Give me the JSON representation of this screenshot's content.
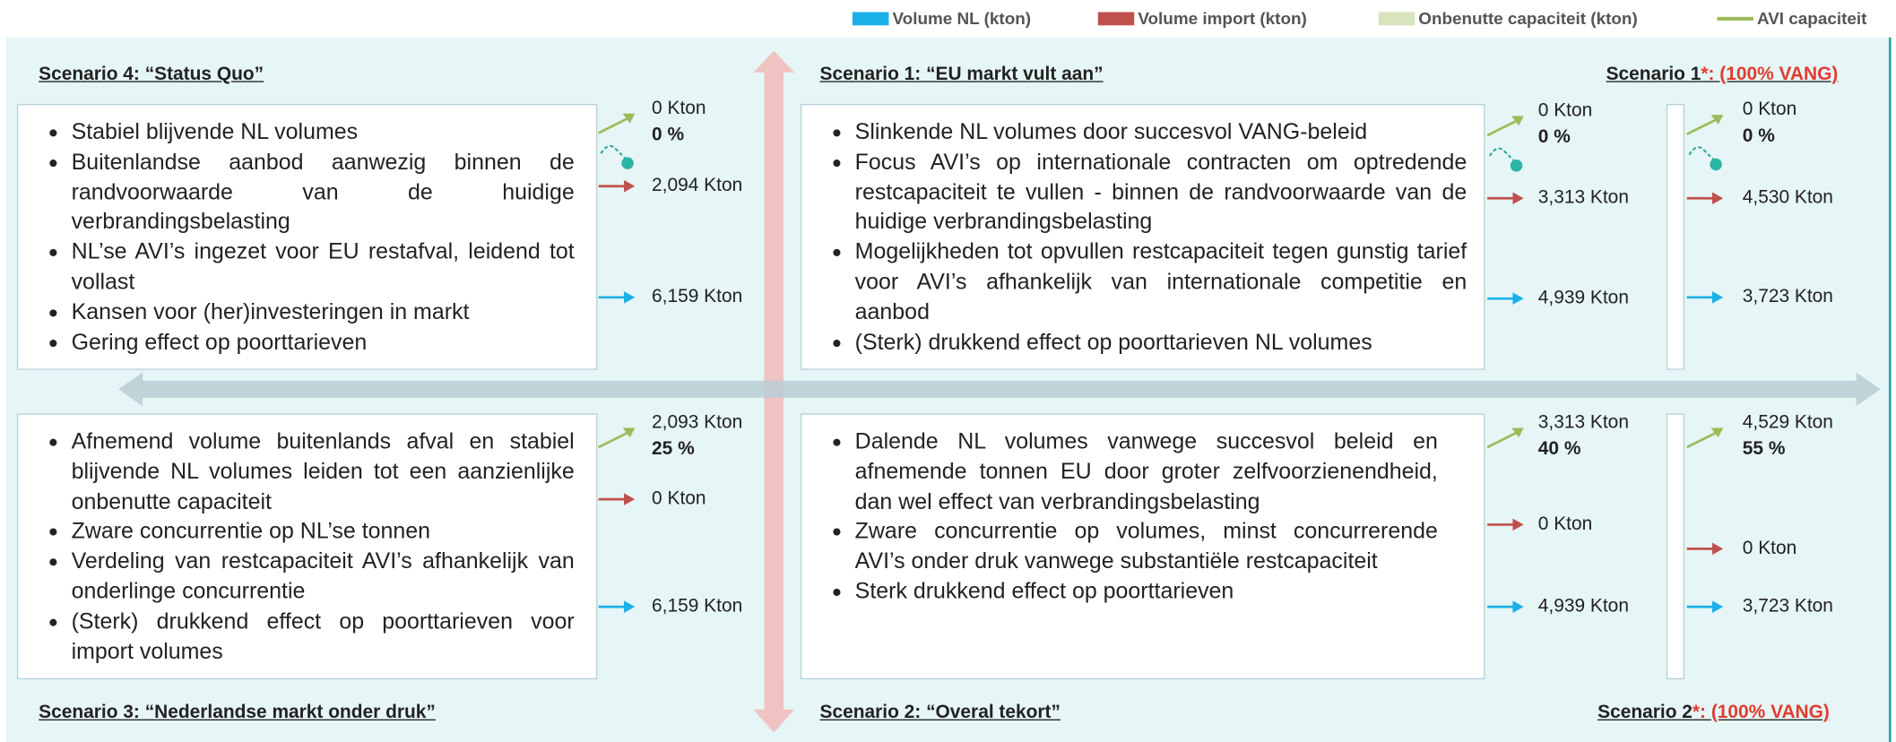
{
  "legend": [
    "Volume NL (kton)",
    "Volume import (kton)",
    "Onbenutte capaciteit (kton)",
    "AVI capaciteit"
  ],
  "quadrants": [
    {
      "title": "Scenario 4: “Status Quo”",
      "bullets": [
        "Stabiel blijvende NL volumes",
        "Buitenlandse aanbod aanwezig binnen de randvoorwaarde van de huidige verbrandingsbelasting",
        "NL’se AVI’s ingezet voor EU restafval, leidend tot vollast",
        "Kansen voor (her)investeringen in markt",
        "Gering effect op poorttarieven"
      ],
      "metrics": {
        "capacity": "0 Kton",
        "percent": "0 %",
        "import": "2,094 Kton",
        "nl": "6,159 Kton"
      }
    },
    {
      "title": "Scenario 1: “EU markt vult aan”",
      "bullets": [
        "Slinkende NL volumes door succesvol VANG-beleid",
        "Focus AVI’s op internationale contracten om optredende restcapaciteit te vullen - binnen de randvoorwaarde van de huidige verbrandingsbelasting",
        "Mogelijkheden tot opvullen restcapaciteit tegen gunstig tarief voor AVI’s afhankelijk van internationale competitie en aanbod",
        "(Sterk) drukkend effect op poorttarieven NL volumes"
      ],
      "metrics": {
        "capacity": "0 Kton",
        "percent": "0 %",
        "import": "3,313 Kton",
        "nl": "4,939 Kton"
      }
    },
    {
      "title": "Scenario 1",
      "title_suffix": "*: (100% VANG)",
      "metrics": {
        "capacity": "0 Kton",
        "percent": "0 %",
        "import": "4,530 Kton",
        "nl": "3,723 Kton"
      }
    },
    {
      "title": "Scenario 3: “Nederlandse markt onder druk”",
      "bullets": [
        "Afnemend volume buitenlands afval en stabiel blijvende NL volumes leiden tot een aanzienlijke  onbenutte capaciteit",
        "Zware concurrentie op NL’se tonnen",
        "Verdeling van restcapaciteit AVI’s afhankelijk van onderlinge concurrentie",
        "(Sterk) drukkend effect op poorttarieven voor import volumes"
      ],
      "metrics": {
        "capacity": "2,093 Kton",
        "percent": "25 %",
        "import": "0 Kton",
        "nl": "6,159 Kton"
      }
    },
    {
      "title": "Scenario 2: “Overal tekort”",
      "bullets": [
        "Dalende NL volumes vanwege succesvol beleid en afnemende tonnen EU door groter zelfvoorzienendheid, dan wel effect van verbrandingsbelasting",
        "Zware concurrentie op volumes, minst concurrerende AVI’s onder druk vanwege substantiële restcapaciteit",
        "Sterk drukkend effect op poorttarieven"
      ],
      "metrics": {
        "capacity": "3,313 Kton",
        "percent": "40 %",
        "import": "0 Kton",
        "nl": "4,939 Kton"
      }
    },
    {
      "title": "Scenario 2",
      "title_suffix": "*: (100% VANG)",
      "metrics": {
        "capacity": "4,529 Kton",
        "percent": "55 %",
        "import": "0 Kton",
        "nl": "3,723 Kton"
      }
    }
  ]
}
